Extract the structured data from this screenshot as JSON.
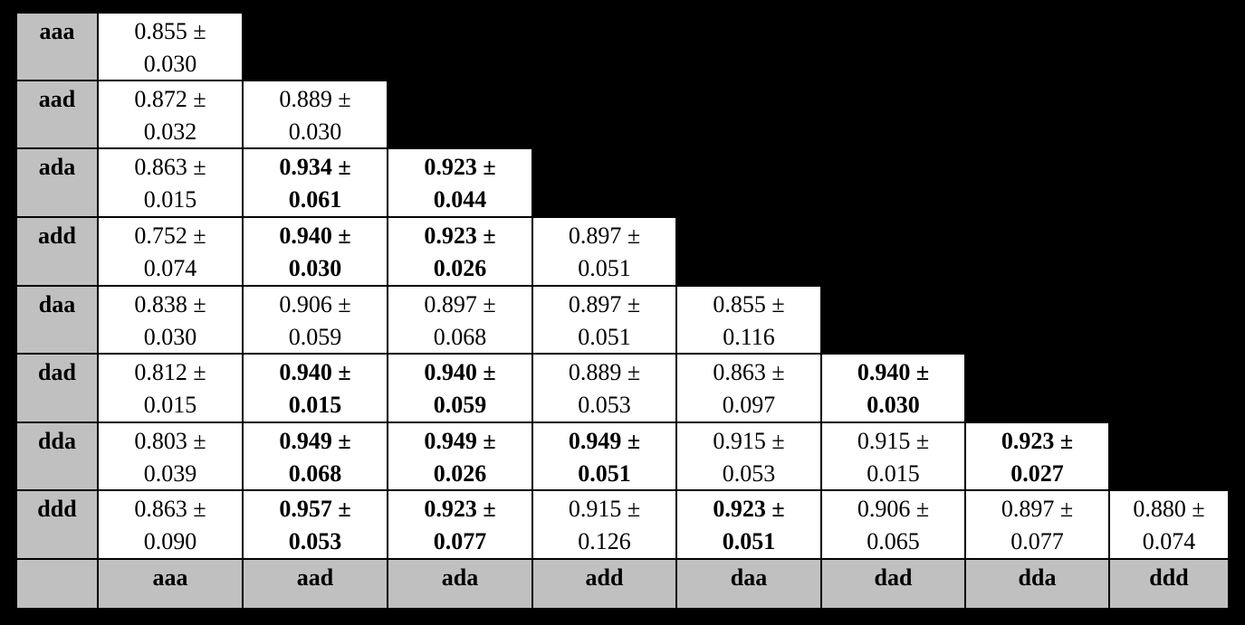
{
  "table": {
    "rows": [
      {
        "label": "aaa",
        "cells": [
          {
            "lines": [
              "0.855 ±",
              "0.030"
            ],
            "bold": false
          }
        ]
      },
      {
        "label": "aad",
        "cells": [
          {
            "lines": [
              "0.872 ±",
              "0.032"
            ],
            "bold": false
          },
          {
            "lines": [
              "0.889 ±",
              "0.030"
            ],
            "bold": false
          }
        ]
      },
      {
        "label": "ada",
        "cells": [
          {
            "lines": [
              "0.863 ±",
              "0.015"
            ],
            "bold": false
          },
          {
            "lines": [
              "0.934 ±",
              "0.061"
            ],
            "bold": true
          },
          {
            "lines": [
              "0.923 ±",
              "0.044"
            ],
            "bold": true
          }
        ]
      },
      {
        "label": "add",
        "cells": [
          {
            "lines": [
              "0.752 ±",
              "0.074"
            ],
            "bold": false
          },
          {
            "lines": [
              "0.940 ±",
              "0.030"
            ],
            "bold": true
          },
          {
            "lines": [
              "0.923 ±",
              "0.026"
            ],
            "bold": true
          },
          {
            "lines": [
              "0.897 ±",
              "0.051"
            ],
            "bold": false
          }
        ]
      },
      {
        "label": "daa",
        "cells": [
          {
            "lines": [
              "0.838 ±",
              "0.030"
            ],
            "bold": false
          },
          {
            "lines": [
              "0.906 ±",
              "0.059"
            ],
            "bold": false
          },
          {
            "lines": [
              "0.897 ±",
              "0.068"
            ],
            "bold": false
          },
          {
            "lines": [
              "0.897 ±",
              "0.051"
            ],
            "bold": false
          },
          {
            "lines": [
              "0.855 ±",
              "0.116"
            ],
            "bold": false
          }
        ]
      },
      {
        "label": "dad",
        "cells": [
          {
            "lines": [
              "0.812 ±",
              "0.015"
            ],
            "bold": false
          },
          {
            "lines": [
              "0.940 ±",
              "0.015"
            ],
            "bold": true
          },
          {
            "lines": [
              "0.940 ±",
              "0.059"
            ],
            "bold": true
          },
          {
            "lines": [
              "0.889 ±",
              "0.053"
            ],
            "bold": false
          },
          {
            "lines": [
              "0.863 ±",
              "0.097"
            ],
            "bold": false
          },
          {
            "lines": [
              "0.940 ±",
              "0.030"
            ],
            "bold": true
          }
        ]
      },
      {
        "label": "dda",
        "cells": [
          {
            "lines": [
              "0.803 ±",
              "0.039"
            ],
            "bold": false
          },
          {
            "lines": [
              "0.949 ±",
              "0.068"
            ],
            "bold": true
          },
          {
            "lines": [
              "0.949 ±",
              "0.026"
            ],
            "bold": true
          },
          {
            "lines": [
              "0.949 ±",
              "0.051"
            ],
            "bold": true
          },
          {
            "lines": [
              "0.915 ±",
              "0.053"
            ],
            "bold": false
          },
          {
            "lines": [
              "0.915 ±",
              "0.015"
            ],
            "bold": false
          },
          {
            "lines": [
              "0.923 ±",
              "0.027"
            ],
            "bold": true
          }
        ]
      },
      {
        "label": "ddd",
        "cells": [
          {
            "lines": [
              "0.863 ±",
              "0.090"
            ],
            "bold": false
          },
          {
            "lines": [
              "0.957 ±",
              "0.053"
            ],
            "bold": true
          },
          {
            "lines": [
              "0.923 ±",
              "0.077"
            ],
            "bold": true
          },
          {
            "lines": [
              "0.915 ±",
              "0.126"
            ],
            "bold": false
          },
          {
            "lines": [
              "0.923 ±",
              "0.051"
            ],
            "bold": true
          },
          {
            "lines": [
              "0.906 ±",
              "0.065"
            ],
            "bold": false
          },
          {
            "lines": [
              "0.897 ±",
              "0.077"
            ],
            "bold": false
          },
          {
            "lines": [
              "0.880 ±",
              "0.074"
            ],
            "bold": false
          }
        ]
      }
    ],
    "columns": [
      "aaa",
      "aad",
      "ada",
      "add",
      "daa",
      "dad",
      "dda",
      "ddd"
    ]
  }
}
